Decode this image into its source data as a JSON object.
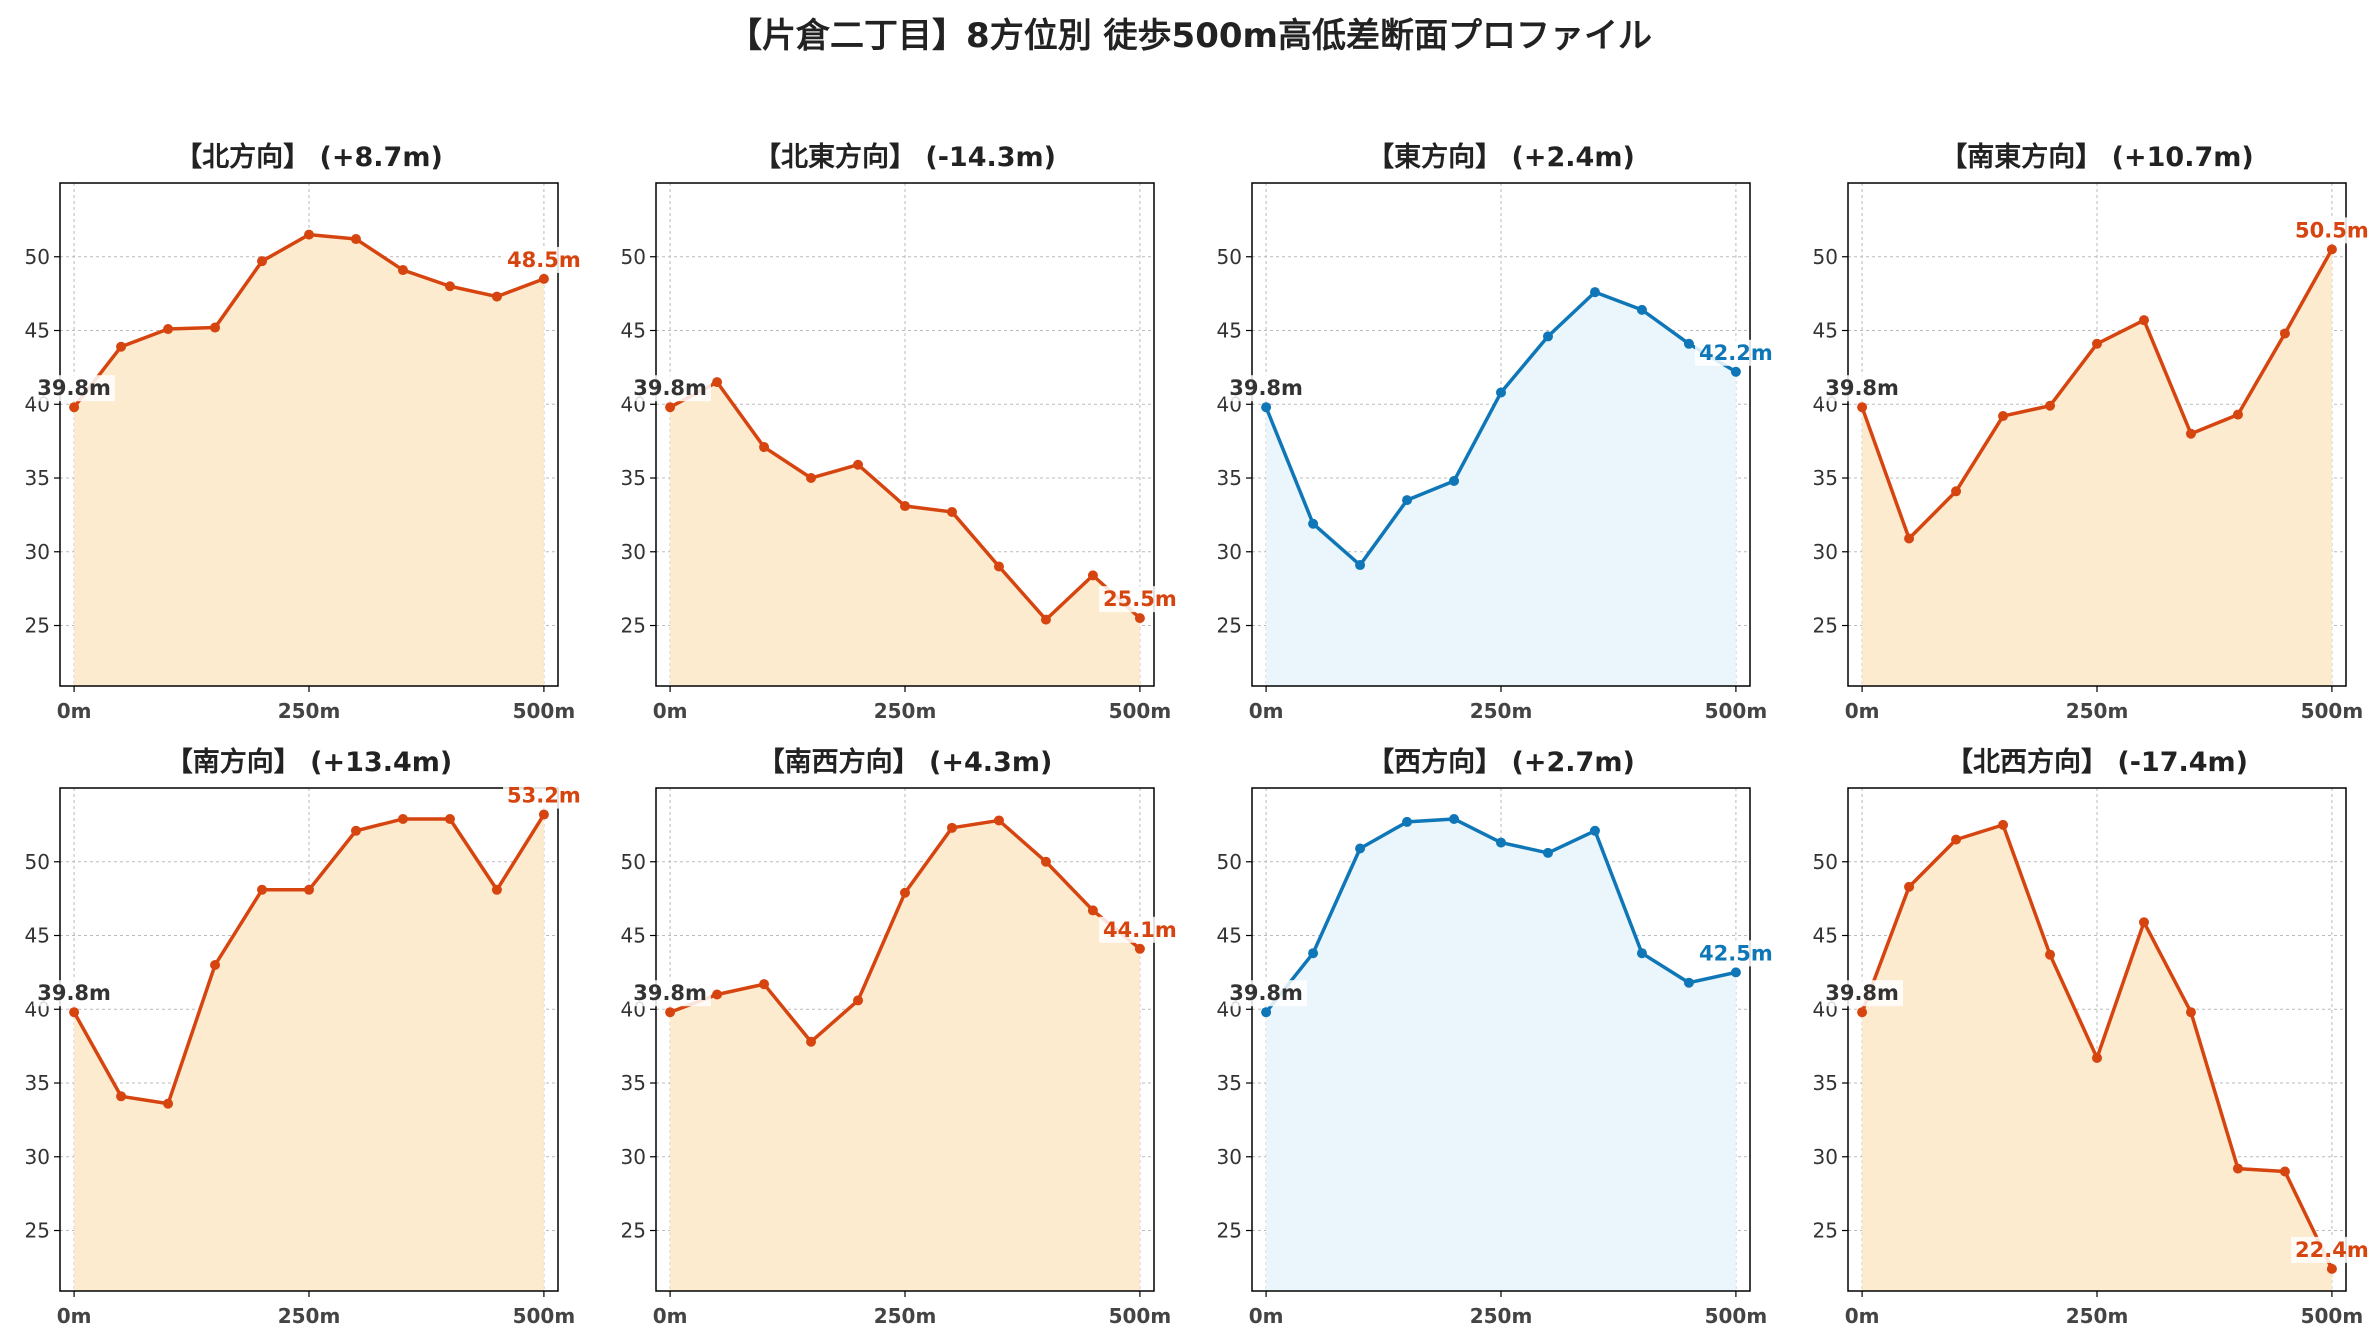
{
  "title": "【片倉二丁目】8方位別 徒歩500m高低差断面プロファイル",
  "colors": {
    "up_line": "#d64510",
    "up_fill": "#fdebd0",
    "flat_line": "#0f77b7",
    "flat_fill": "#eaf6fb",
    "start_label": "#333333",
    "axis": "#000000",
    "grid": "#bbbbbb"
  },
  "chart_data": [
    {
      "type": "line",
      "title": "【北方向】 (+8.7m)",
      "scheme": "up",
      "x": [
        0,
        50,
        100,
        150,
        200,
        250,
        300,
        350,
        400,
        450,
        500
      ],
      "values": [
        39.8,
        43.9,
        45.1,
        45.2,
        49.7,
        51.5,
        51.2,
        49.1,
        48.0,
        47.3,
        48.5
      ],
      "start_label": "39.8m",
      "end_label": "48.5m"
    },
    {
      "type": "line",
      "title": "【北東方向】 (-14.3m)",
      "scheme": "up",
      "x": [
        0,
        50,
        100,
        150,
        200,
        250,
        300,
        350,
        400,
        450,
        500
      ],
      "values": [
        39.8,
        41.5,
        37.1,
        35.0,
        35.9,
        33.1,
        32.7,
        29.0,
        25.4,
        28.4,
        25.5
      ],
      "start_label": "39.8m",
      "end_label": "25.5m"
    },
    {
      "type": "line",
      "title": "【東方向】 (+2.4m)",
      "scheme": "flat",
      "x": [
        0,
        50,
        100,
        150,
        200,
        250,
        300,
        350,
        400,
        450,
        500
      ],
      "values": [
        39.8,
        31.9,
        29.1,
        33.5,
        34.8,
        40.8,
        44.6,
        47.6,
        46.4,
        44.1,
        42.2
      ],
      "start_label": "39.8m",
      "end_label": "42.2m"
    },
    {
      "type": "line",
      "title": "【南東方向】 (+10.7m)",
      "scheme": "up",
      "x": [
        0,
        50,
        100,
        150,
        200,
        250,
        300,
        350,
        400,
        450,
        500
      ],
      "values": [
        39.8,
        30.9,
        34.1,
        39.2,
        39.9,
        44.1,
        45.7,
        38.0,
        39.3,
        44.8,
        50.5
      ],
      "start_label": "39.8m",
      "end_label": "50.5m"
    },
    {
      "type": "line",
      "title": "【南方向】 (+13.4m)",
      "scheme": "up",
      "x": [
        0,
        50,
        100,
        150,
        200,
        250,
        300,
        350,
        400,
        450,
        500
      ],
      "values": [
        39.8,
        34.1,
        33.6,
        43.0,
        48.1,
        48.1,
        52.1,
        52.9,
        52.9,
        48.1,
        53.2
      ],
      "start_label": "39.8m",
      "end_label": "53.2m"
    },
    {
      "type": "line",
      "title": "【南西方向】 (+4.3m)",
      "scheme": "up",
      "x": [
        0,
        50,
        100,
        150,
        200,
        250,
        300,
        350,
        400,
        450,
        500
      ],
      "values": [
        39.8,
        41.0,
        41.7,
        37.8,
        40.6,
        47.9,
        52.3,
        52.8,
        50.0,
        46.7,
        44.1
      ],
      "start_label": "39.8m",
      "end_label": "44.1m"
    },
    {
      "type": "line",
      "title": "【西方向】 (+2.7m)",
      "scheme": "flat",
      "x": [
        0,
        50,
        100,
        150,
        200,
        250,
        300,
        350,
        400,
        450,
        500
      ],
      "values": [
        39.8,
        43.8,
        50.9,
        52.7,
        52.9,
        51.3,
        50.6,
        52.1,
        43.8,
        41.8,
        42.5
      ],
      "start_label": "39.8m",
      "end_label": "42.5m"
    },
    {
      "type": "line",
      "title": "【北西方向】 (-17.4m)",
      "scheme": "up",
      "x": [
        0,
        50,
        100,
        150,
        200,
        250,
        300,
        350,
        400,
        450,
        500
      ],
      "values": [
        39.8,
        48.3,
        51.5,
        52.5,
        43.7,
        36.7,
        45.9,
        39.8,
        29.2,
        29.0,
        22.4
      ],
      "start_label": "39.8m",
      "end_label": "22.4m"
    }
  ],
  "axes": {
    "xlim": [
      -15,
      515
    ],
    "ylim": [
      20.9,
      55.0
    ],
    "xticks": [
      0,
      250,
      500
    ],
    "xtick_labels": [
      "0m",
      "250m",
      "500m"
    ],
    "yticks": [
      25,
      30,
      35,
      40,
      45,
      50
    ],
    "grid": true
  }
}
